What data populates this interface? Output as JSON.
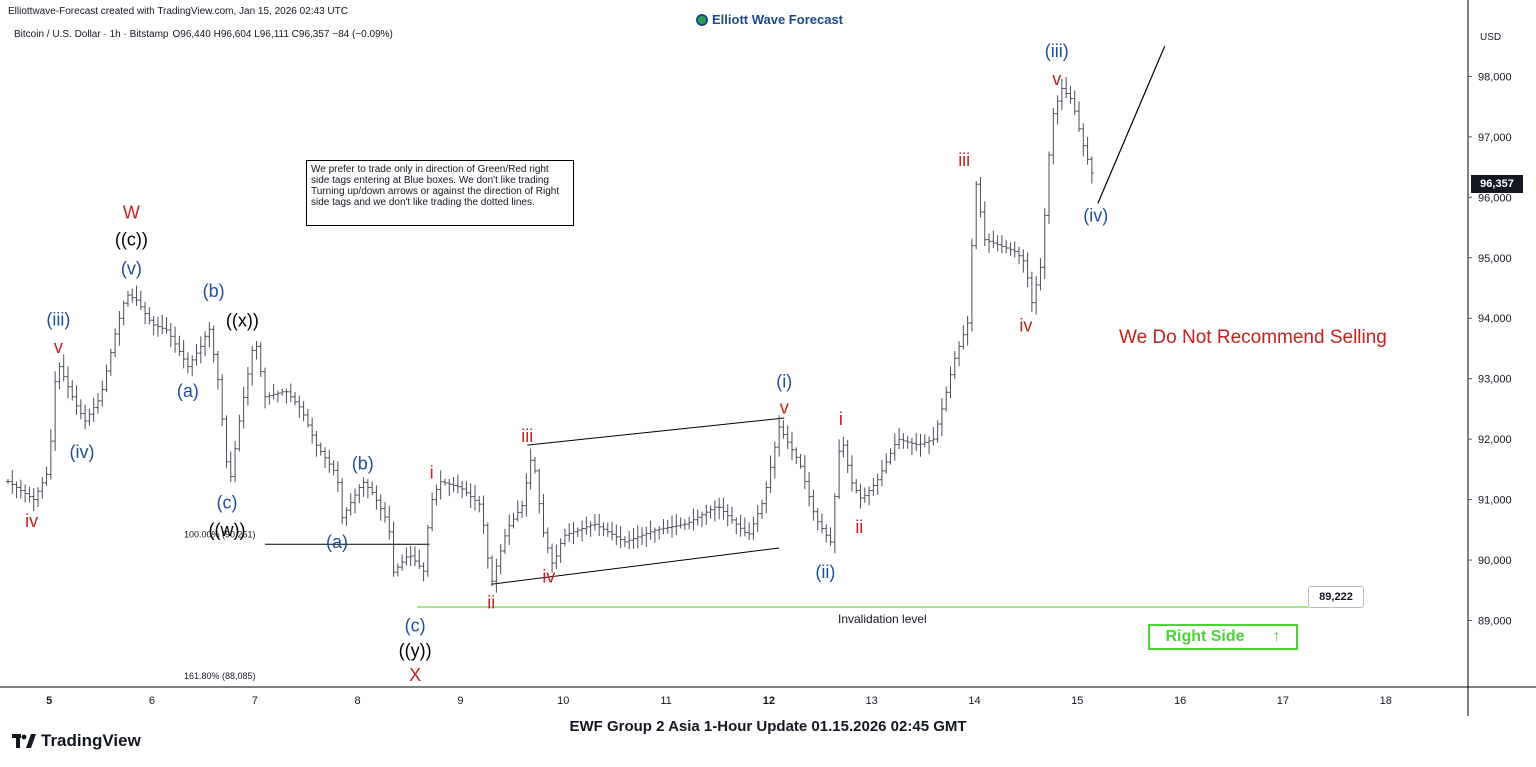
{
  "header": {
    "credit": "Elliottwave-Forecast created with TradingView.com, Jan 15, 2026 02:43 UTC",
    "symbol": "Bitcoin / U.S. Dollar · 1h · Bitstamp",
    "ohlc": "O96,440 H96,604 L96,111 C96,357 −84 (−0.09%)",
    "brand": "Elliott Wave Forecast",
    "currency": "USD"
  },
  "footer": {
    "title": "EWF Group 2 Asia 1-Hour Update 01.15.2026 02:45 GMT",
    "tv_brand": "TradingView"
  },
  "note_text": "We prefer to trade only in direction of Green/Red right side tags entering at Blue boxes. We don't like trading Turning up/down arrows or against the direction of Right side tags and we don't like trading the dotted lines.",
  "warning_text": "We Do Not Recommend Selling",
  "right_side": {
    "label": "Right Side",
    "arrow": "↑"
  },
  "invalidation": {
    "label": "Invalidation level",
    "value": 89222,
    "value_label": "89,222"
  },
  "last_price_label": "96,357",
  "colors": {
    "red": "#c0221c",
    "blue": "#1f4e9c",
    "black": "#000000",
    "green": "#4cd137",
    "candle": "#4a4e59"
  },
  "chart_data": {
    "type": "candlestick",
    "xlabel": "",
    "ylabel": "",
    "x_ticks": [
      5,
      6,
      7,
      8,
      9,
      10,
      11,
      12,
      13,
      14,
      15,
      16,
      17,
      18
    ],
    "x_range": [
      4.6,
      18.8
    ],
    "y_ticks": [
      89000,
      90000,
      91000,
      92000,
      93000,
      94000,
      95000,
      96000,
      97000,
      98000
    ],
    "y_tick_labels": [
      "89,000",
      "90,000",
      "91,000",
      "92,000",
      "93,000",
      "94,000",
      "95,000",
      "96,000",
      "97,000",
      "98,000"
    ],
    "ylim": [
      87900,
      98900
    ],
    "grid": false,
    "price_path": [
      [
        4.6,
        91300
      ],
      [
        4.85,
        91000
      ],
      [
        5.0,
        91500
      ],
      [
        5.05,
        92900
      ],
      [
        5.1,
        93200
      ],
      [
        5.25,
        92600
      ],
      [
        5.35,
        92300
      ],
      [
        5.5,
        92700
      ],
      [
        5.65,
        93800
      ],
      [
        5.75,
        94400
      ],
      [
        5.85,
        94300
      ],
      [
        6.0,
        93900
      ],
      [
        6.15,
        93800
      ],
      [
        6.25,
        93500
      ],
      [
        6.35,
        93200
      ],
      [
        6.5,
        93600
      ],
      [
        6.55,
        93900
      ],
      [
        6.65,
        92900
      ],
      [
        6.75,
        91200
      ],
      [
        6.85,
        92300
      ],
      [
        7.0,
        93700
      ],
      [
        7.1,
        92700
      ],
      [
        7.3,
        92800
      ],
      [
        7.45,
        92500
      ],
      [
        7.6,
        91900
      ],
      [
        7.8,
        91400
      ],
      [
        7.85,
        90700
      ],
      [
        7.95,
        91000
      ],
      [
        8.05,
        91300
      ],
      [
        8.15,
        91100
      ],
      [
        8.3,
        90600
      ],
      [
        8.35,
        89800
      ],
      [
        8.5,
        90100
      ],
      [
        8.65,
        89800
      ],
      [
        8.7,
        90900
      ],
      [
        8.8,
        91300
      ],
      [
        9.0,
        91200
      ],
      [
        9.2,
        90900
      ],
      [
        9.3,
        89600
      ],
      [
        9.45,
        90500
      ],
      [
        9.6,
        90900
      ],
      [
        9.7,
        91800
      ],
      [
        9.8,
        90500
      ],
      [
        9.9,
        89900
      ],
      [
        10.0,
        90400
      ],
      [
        10.3,
        90600
      ],
      [
        10.6,
        90300
      ],
      [
        10.9,
        90500
      ],
      [
        11.2,
        90600
      ],
      [
        11.5,
        90900
      ],
      [
        11.8,
        90400
      ],
      [
        11.95,
        91000
      ],
      [
        12.1,
        92200
      ],
      [
        12.3,
        91600
      ],
      [
        12.45,
        90700
      ],
      [
        12.6,
        90300
      ],
      [
        12.7,
        92100
      ],
      [
        12.8,
        91300
      ],
      [
        12.9,
        91000
      ],
      [
        13.05,
        91300
      ],
      [
        13.25,
        92000
      ],
      [
        13.45,
        91900
      ],
      [
        13.6,
        92000
      ],
      [
        13.7,
        92600
      ],
      [
        13.8,
        93300
      ],
      [
        13.95,
        94000
      ],
      [
        14.0,
        96400
      ],
      [
        14.1,
        95300
      ],
      [
        14.25,
        95200
      ],
      [
        14.4,
        95100
      ],
      [
        14.5,
        94900
      ],
      [
        14.55,
        94200
      ],
      [
        14.65,
        94900
      ],
      [
        14.75,
        97300
      ],
      [
        14.85,
        97800
      ],
      [
        14.95,
        97600
      ],
      [
        15.05,
        96900
      ],
      [
        15.15,
        96357
      ]
    ],
    "projection": [
      [
        15.2,
        95900
      ],
      [
        15.85,
        98500
      ]
    ],
    "channel_lines": [
      {
        "from": [
          9.65,
          91900
        ],
        "to": [
          12.15,
          92350
        ]
      },
      {
        "from": [
          9.3,
          89600
        ],
        "to": [
          12.1,
          90200
        ]
      }
    ],
    "fib_levels": [
      {
        "label": "100.00% (90,261)",
        "value": 90261,
        "x_from": 7.1,
        "x_to": 8.7
      },
      {
        "label": "161.80% (88,085)",
        "value": 88085
      }
    ],
    "wave_labels": [
      {
        "text": "iv",
        "x": 4.83,
        "y": 90650,
        "color": "red"
      },
      {
        "text": "v",
        "x": 5.09,
        "y": 93520,
        "color": "red"
      },
      {
        "text": "(iii)",
        "x": 5.09,
        "y": 93980,
        "color": "blue"
      },
      {
        "text": "(iv)",
        "x": 5.32,
        "y": 91790,
        "color": "blue"
      },
      {
        "text": "(v)",
        "x": 5.8,
        "y": 94820,
        "color": "blue"
      },
      {
        "text": "((c))",
        "x": 5.8,
        "y": 95300,
        "color": "black"
      },
      {
        "text": "W",
        "x": 5.8,
        "y": 95750,
        "color": "red"
      },
      {
        "text": "(a)",
        "x": 6.35,
        "y": 92800,
        "color": "blue"
      },
      {
        "text": "(b)",
        "x": 6.6,
        "y": 94450,
        "color": "blue"
      },
      {
        "text": "((x))",
        "x": 6.88,
        "y": 93960,
        "color": "black"
      },
      {
        "text": "(c)",
        "x": 6.73,
        "y": 90950,
        "color": "blue"
      },
      {
        "text": "((w))",
        "x": 6.73,
        "y": 90500,
        "color": "black"
      },
      {
        "text": "(b)",
        "x": 8.05,
        "y": 91600,
        "color": "blue"
      },
      {
        "text": "(a)",
        "x": 7.8,
        "y": 90300,
        "color": "blue"
      },
      {
        "text": "i",
        "x": 8.72,
        "y": 91450,
        "color": "red"
      },
      {
        "text": "(c)",
        "x": 8.56,
        "y": 88920,
        "color": "blue"
      },
      {
        "text": "((y))",
        "x": 8.56,
        "y": 88500,
        "color": "black"
      },
      {
        "text": "X",
        "x": 8.56,
        "y": 88100,
        "color": "red"
      },
      {
        "text": "iii",
        "x": 9.65,
        "y": 92050,
        "color": "red"
      },
      {
        "text": "ii",
        "x": 9.3,
        "y": 89300,
        "color": "red"
      },
      {
        "text": "iv",
        "x": 9.86,
        "y": 89730,
        "color": "red"
      },
      {
        "text": "(i)",
        "x": 12.15,
        "y": 92950,
        "color": "blue"
      },
      {
        "text": "v",
        "x": 12.15,
        "y": 92520,
        "color": "red"
      },
      {
        "text": "(ii)",
        "x": 12.55,
        "y": 89800,
        "color": "blue"
      },
      {
        "text": "i",
        "x": 12.7,
        "y": 92330,
        "color": "red"
      },
      {
        "text": "ii",
        "x": 12.88,
        "y": 90550,
        "color": "red"
      },
      {
        "text": "iii",
        "x": 13.9,
        "y": 96620,
        "color": "red"
      },
      {
        "text": "iv",
        "x": 14.5,
        "y": 93880,
        "color": "red"
      },
      {
        "text": "(iii)",
        "x": 14.8,
        "y": 98420,
        "color": "blue"
      },
      {
        "text": "v",
        "x": 14.8,
        "y": 97960,
        "color": "red"
      },
      {
        "text": "(iv)",
        "x": 15.18,
        "y": 95700,
        "color": "blue"
      }
    ]
  }
}
